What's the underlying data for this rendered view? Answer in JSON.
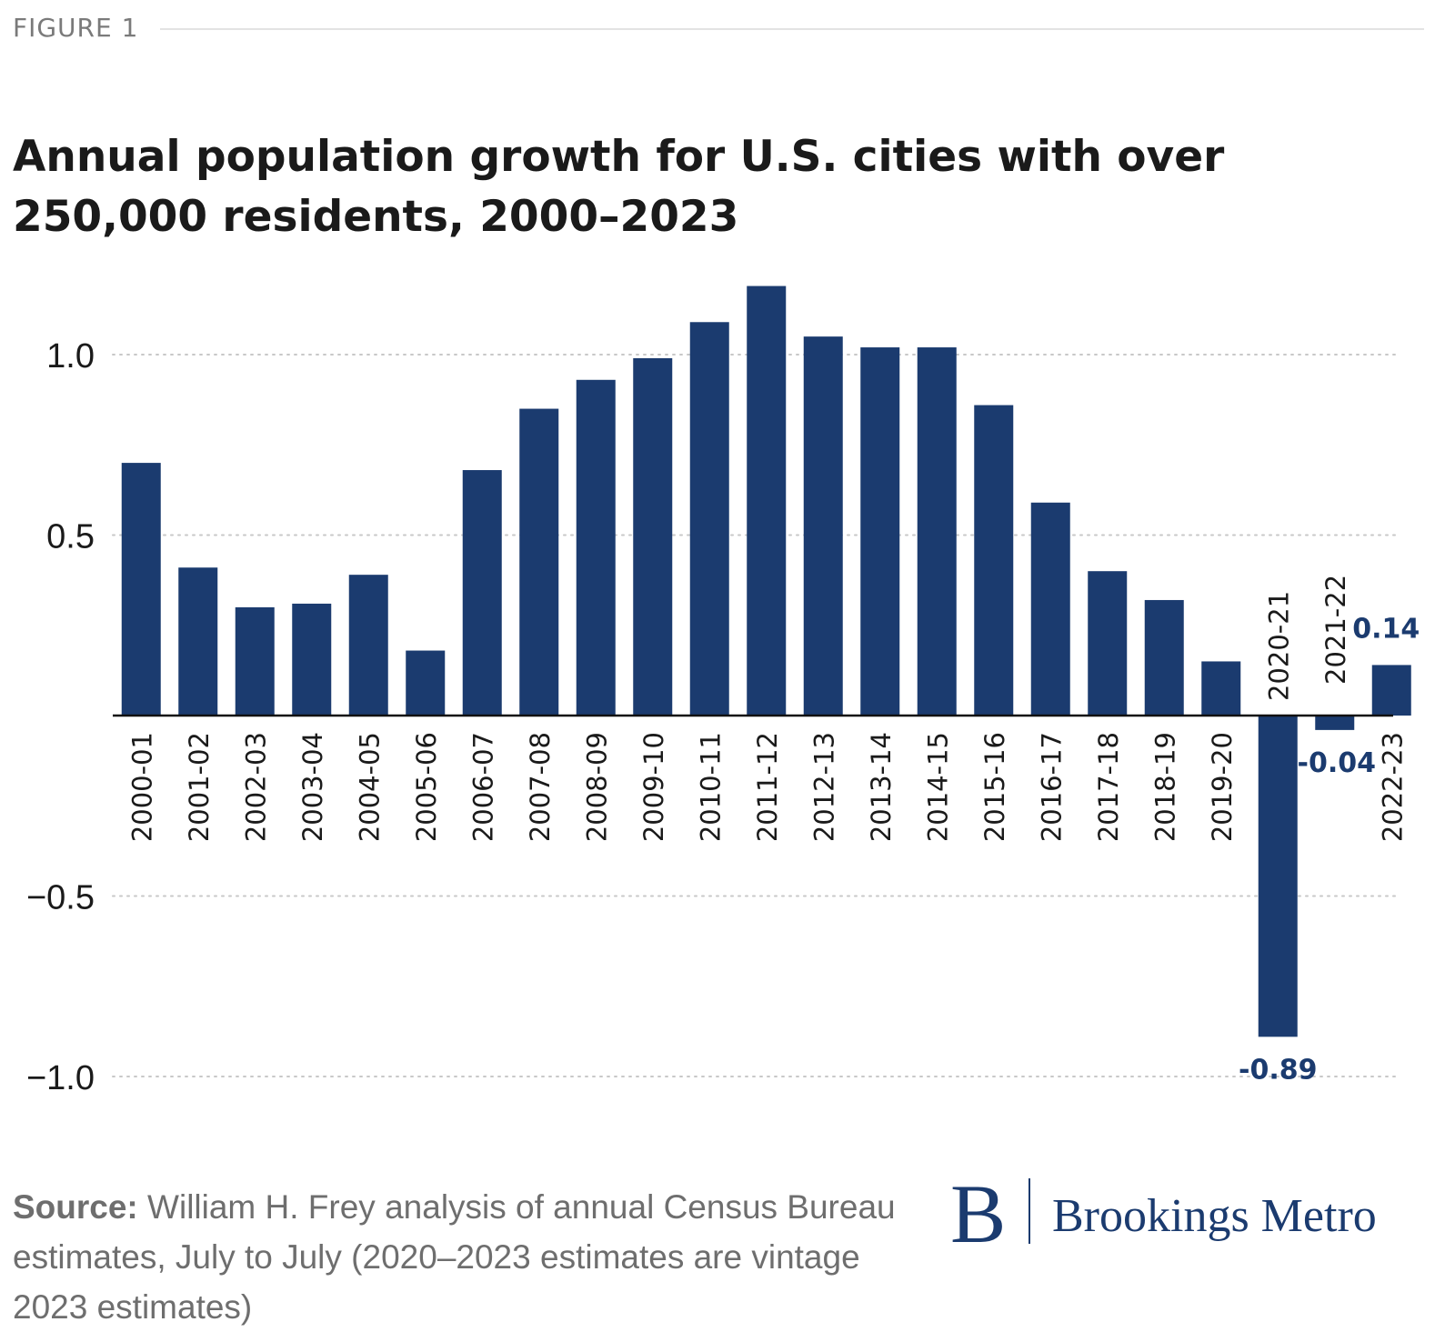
{
  "figure_label": "FIGURE 1",
  "title": "Annual population growth for U.S. cities with over 250,000 residents, 2000–2023",
  "source_label": "Source:",
  "source_text": "William H. Frey analysis of annual Census Bureau estimates, July to July (2020–2023 estimates are vintage 2023 estimates)",
  "brand": {
    "letter": "B",
    "name": "Brookings Metro"
  },
  "colors": {
    "bar": "#1b3b6f",
    "grid": "#c8c8c8",
    "text": "#1a1a1a",
    "muted": "#6e6e6e"
  },
  "chart_data": {
    "type": "bar",
    "categories": [
      "2000-01",
      "2001-02",
      "2002-03",
      "2003-04",
      "2004-05",
      "2005-06",
      "2006-07",
      "2007-08",
      "2008-09",
      "2009-10",
      "2010-11",
      "2011-12",
      "2012-13",
      "2013-14",
      "2014-15",
      "2015-16",
      "2016-17",
      "2017-18",
      "2018-19",
      "2019-20",
      "2020-21",
      "2021-22",
      "2022-23"
    ],
    "values": [
      0.7,
      0.41,
      0.3,
      0.31,
      0.39,
      0.18,
      0.68,
      0.85,
      0.93,
      0.99,
      1.09,
      1.19,
      1.05,
      1.02,
      1.02,
      0.86,
      0.59,
      0.4,
      0.32,
      0.15,
      -0.89,
      -0.04,
      0.14
    ],
    "data_labels": [
      {
        "category": "2020-21",
        "text": "-0.89"
      },
      {
        "category": "2021-22",
        "text": "-0.04"
      },
      {
        "category": "2022-23",
        "text": "0.14"
      }
    ],
    "yticks": [
      1.0,
      0.5,
      -0.5,
      -1.0
    ],
    "ytick_labels": [
      "1.0",
      "0.5",
      "−0.5",
      "−1.0"
    ],
    "ylim": [
      -1.08,
      1.27
    ],
    "grid": true,
    "legend": "none",
    "xlabel": "",
    "ylabel": ""
  }
}
